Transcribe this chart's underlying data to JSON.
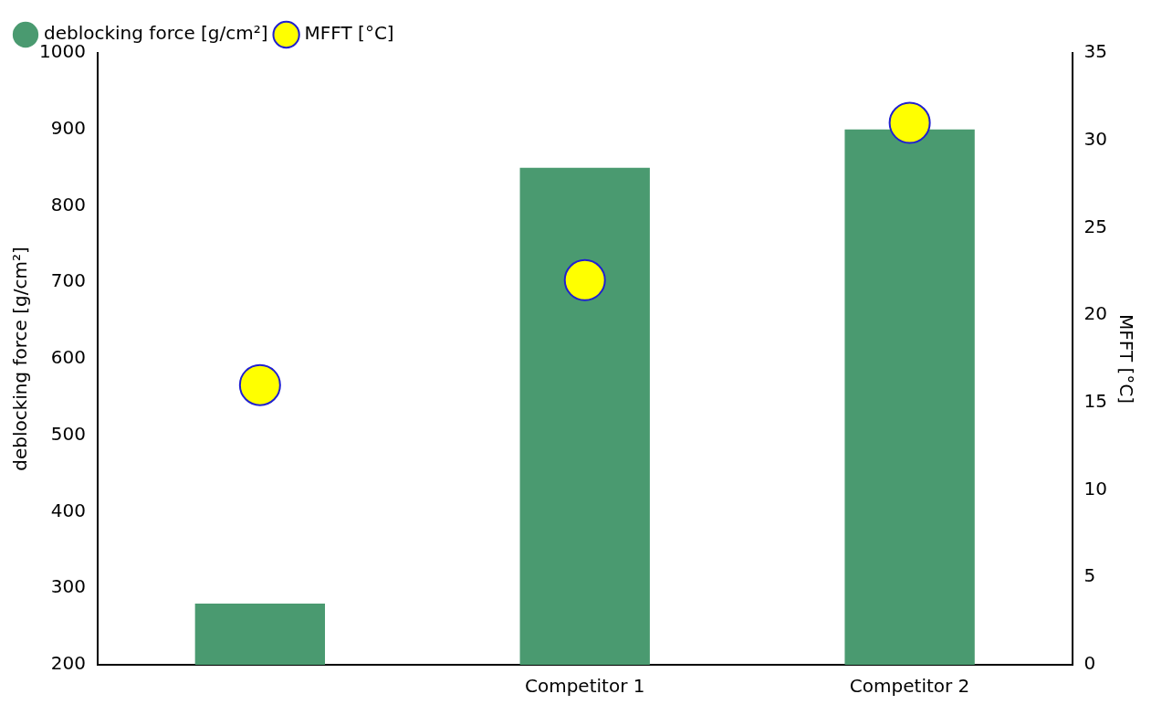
{
  "chart_data": {
    "type": "bar",
    "categories": [
      null,
      "Competitor 1",
      "Competitor 2"
    ],
    "series": [
      {
        "name": "deblocking force [g/cm²]",
        "color": "#4a9a70",
        "values": [
          280,
          850,
          900
        ]
      },
      {
        "name": "MFFT [°C]",
        "type": "scatter",
        "axis": "y2",
        "color": "#ffff00",
        "values": [
          16,
          22,
          31
        ]
      }
    ],
    "ylabel": "deblocking force [g/cm²]",
    "y2label": "MFFT [°C]",
    "ylim": [
      200,
      1000
    ],
    "yticks": [
      200,
      300,
      400,
      500,
      600,
      700,
      800,
      900,
      1000
    ],
    "y2lim": [
      0,
      35
    ],
    "y2ticks": [
      0,
      5,
      10,
      15,
      20,
      25,
      30,
      35
    ],
    "legend": "top left",
    "grid": false,
    "marker": "circle"
  }
}
